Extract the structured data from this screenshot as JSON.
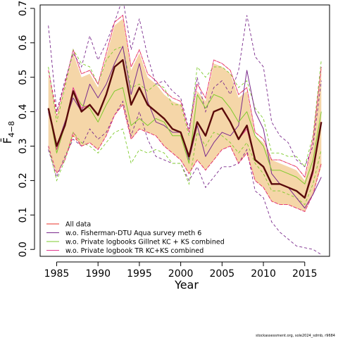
{
  "chart_data": {
    "type": "line",
    "xlabel": "Year",
    "ylabel": "F̄",
    "ylabel_sub": "4−8",
    "xlim": [
      1983,
      2018
    ],
    "ylim": [
      -0.02,
      0.71
    ],
    "x_ticks": [
      1985,
      1990,
      1995,
      2000,
      2005,
      2010,
      2015
    ],
    "x_tick_labels": [
      "1985",
      "1990",
      "1995",
      "2000",
      "2005",
      "2010",
      "2015"
    ],
    "y_ticks": [
      0.0,
      0.1,
      0.2,
      0.3,
      0.4,
      0.5,
      0.6,
      0.7
    ],
    "y_tick_labels": [
      "0.0",
      "0.1",
      "0.2",
      "0.3",
      "0.4",
      "0.5",
      "0.6",
      "0.7"
    ],
    "grid": false,
    "legend_position": "bottom-left",
    "footer": "stockassessment.org, sole2024_sdmb, r9684",
    "x": [
      1984,
      1985,
      1986,
      1987,
      1988,
      1989,
      1990,
      1991,
      1992,
      1993,
      1994,
      1995,
      1996,
      1997,
      1998,
      1999,
      2000,
      2001,
      2002,
      2003,
      2004,
      2005,
      2006,
      2007,
      2008,
      2009,
      2010,
      2011,
      2012,
      2013,
      2014,
      2015,
      2016,
      2017
    ],
    "band": {
      "color": "#f5d6a8",
      "lower": [
        0.29,
        0.22,
        0.26,
        0.33,
        0.3,
        0.31,
        0.29,
        0.33,
        0.39,
        0.42,
        0.32,
        0.35,
        0.34,
        0.33,
        0.3,
        0.28,
        0.26,
        0.22,
        0.26,
        0.23,
        0.26,
        0.29,
        0.3,
        0.25,
        0.28,
        0.2,
        0.18,
        0.14,
        0.13,
        0.13,
        0.12,
        0.11,
        0.16,
        0.24
      ],
      "upper": [
        0.51,
        0.39,
        0.47,
        0.57,
        0.5,
        0.51,
        0.47,
        0.56,
        0.65,
        0.67,
        0.52,
        0.57,
        0.5,
        0.48,
        0.45,
        0.43,
        0.42,
        0.33,
        0.46,
        0.43,
        0.54,
        0.53,
        0.51,
        0.44,
        0.46,
        0.33,
        0.31,
        0.26,
        0.25,
        0.24,
        0.23,
        0.2,
        0.31,
        0.52
      ]
    },
    "series": [
      {
        "name": "All data",
        "color": "#e8332a",
        "width": 1,
        "values": [
          0.41,
          0.3,
          0.36,
          0.46,
          0.4,
          0.42,
          0.39,
          0.45,
          0.53,
          0.55,
          0.42,
          0.47,
          0.42,
          0.4,
          0.38,
          0.35,
          0.34,
          0.27,
          0.37,
          0.33,
          0.4,
          0.41,
          0.37,
          0.32,
          0.36,
          0.26,
          0.24,
          0.19,
          0.19,
          0.18,
          0.17,
          0.15,
          0.23,
          0.37
        ]
      },
      {
        "name": "w.o. Fisherman-DTU Aqua survey meth 6",
        "color": "#7a2a8c",
        "width": 1,
        "values": [
          0.4,
          0.3,
          0.37,
          0.44,
          0.4,
          0.48,
          0.44,
          0.48,
          0.54,
          0.59,
          0.45,
          0.54,
          0.43,
          0.37,
          0.36,
          0.34,
          0.34,
          0.26,
          0.36,
          0.27,
          0.31,
          0.34,
          0.33,
          0.36,
          0.52,
          0.4,
          0.35,
          0.22,
          0.19,
          0.18,
          0.15,
          0.12,
          0.16,
          0.21
        ]
      },
      {
        "name": "w.o. Private logbooks Gillnet KC + KS combined",
        "color": "#7ecb2c",
        "width": 1,
        "values": [
          0.41,
          0.28,
          0.36,
          0.46,
          0.42,
          0.41,
          0.37,
          0.42,
          0.46,
          0.47,
          0.36,
          0.38,
          0.36,
          0.38,
          0.37,
          0.33,
          0.33,
          0.25,
          0.45,
          0.41,
          0.45,
          0.44,
          0.41,
          0.37,
          0.4,
          0.33,
          0.3,
          0.23,
          0.23,
          0.22,
          0.21,
          0.19,
          0.26,
          0.4
        ]
      },
      {
        "name": "w.o. Private logbook TR KC+KS combined",
        "color": "#e0388f",
        "width": 1,
        "values": [
          0.41,
          0.29,
          0.36,
          0.47,
          0.41,
          0.42,
          0.39,
          0.45,
          0.53,
          0.55,
          0.42,
          0.47,
          0.42,
          0.4,
          0.38,
          0.35,
          0.34,
          0.27,
          0.37,
          0.33,
          0.4,
          0.41,
          0.37,
          0.32,
          0.35,
          0.26,
          0.24,
          0.19,
          0.19,
          0.18,
          0.17,
          0.15,
          0.22,
          0.37
        ]
      },
      {
        "name": "",
        "color": "#5a0a0a",
        "width": 2.4,
        "values": [
          0.41,
          0.3,
          0.36,
          0.46,
          0.4,
          0.42,
          0.39,
          0.45,
          0.53,
          0.55,
          0.42,
          0.47,
          0.42,
          0.4,
          0.38,
          0.35,
          0.34,
          0.27,
          0.37,
          0.33,
          0.4,
          0.41,
          0.37,
          0.32,
          0.36,
          0.26,
          0.24,
          0.19,
          0.19,
          0.18,
          0.17,
          0.15,
          0.23,
          0.37
        ]
      }
    ],
    "dashed_bounds": [
      {
        "color": "#e8332a",
        "lower": [
          0.3,
          0.22,
          0.26,
          0.33,
          0.3,
          0.31,
          0.29,
          0.33,
          0.39,
          0.42,
          0.32,
          0.35,
          0.34,
          0.33,
          0.3,
          0.28,
          0.26,
          0.22,
          0.26,
          0.23,
          0.26,
          0.29,
          0.3,
          0.25,
          0.28,
          0.2,
          0.18,
          0.14,
          0.13,
          0.13,
          0.12,
          0.11,
          0.16,
          0.25
        ],
        "upper": [
          0.52,
          0.4,
          0.48,
          0.58,
          0.51,
          0.52,
          0.48,
          0.57,
          0.66,
          0.68,
          0.53,
          0.58,
          0.51,
          0.49,
          0.46,
          0.44,
          0.43,
          0.34,
          0.48,
          0.44,
          0.55,
          0.54,
          0.52,
          0.45,
          0.47,
          0.34,
          0.32,
          0.26,
          0.26,
          0.25,
          0.24,
          0.21,
          0.32,
          0.53
        ]
      },
      {
        "color": "#7a2a8c",
        "lower": [
          0.29,
          0.21,
          0.27,
          0.32,
          0.3,
          0.35,
          0.32,
          0.34,
          0.39,
          0.43,
          0.33,
          0.4,
          0.32,
          0.27,
          0.26,
          0.25,
          0.25,
          0.2,
          0.24,
          0.18,
          0.21,
          0.24,
          0.24,
          0.25,
          0.29,
          0.17,
          0.15,
          0.08,
          0.05,
          0.03,
          0.01,
          0.005,
          0.0,
          -0.015
        ],
        "upper": [
          0.65,
          0.4,
          0.49,
          0.57,
          0.53,
          0.62,
          0.55,
          0.6,
          0.66,
          0.73,
          0.58,
          0.67,
          0.56,
          0.48,
          0.49,
          0.46,
          0.44,
          0.35,
          0.5,
          0.4,
          0.47,
          0.49,
          0.45,
          0.52,
          0.68,
          0.56,
          0.53,
          0.37,
          0.33,
          0.31,
          0.26,
          0.24,
          0.3,
          0.49
        ]
      },
      {
        "color": "#7ecb2c",
        "lower": [
          0.3,
          0.2,
          0.26,
          0.34,
          0.31,
          0.3,
          0.28,
          0.31,
          0.34,
          0.35,
          0.25,
          0.29,
          0.28,
          0.29,
          0.28,
          0.25,
          0.25,
          0.19,
          0.34,
          0.3,
          0.34,
          0.33,
          0.31,
          0.28,
          0.31,
          0.25,
          0.22,
          0.17,
          0.17,
          0.16,
          0.15,
          0.13,
          0.19,
          0.29
        ]
      },
      {
        "color": "#7ecb2c",
        "upper": [
          0.53,
          0.37,
          0.47,
          0.58,
          0.54,
          0.53,
          0.48,
          0.55,
          0.58,
          0.59,
          0.47,
          0.48,
          0.46,
          0.48,
          0.47,
          0.42,
          0.42,
          0.33,
          0.53,
          0.5,
          0.53,
          0.53,
          0.51,
          0.47,
          0.49,
          0.41,
          0.38,
          0.28,
          0.28,
          0.27,
          0.27,
          0.24,
          0.33,
          0.55
        ]
      },
      {
        "color": "#e0388f",
        "lower": [
          0.3,
          0.22,
          0.26,
          0.34,
          0.3,
          0.31,
          0.29,
          0.33,
          0.39,
          0.42,
          0.32,
          0.35,
          0.34,
          0.33,
          0.3,
          0.28,
          0.26,
          0.22,
          0.26,
          0.23,
          0.26,
          0.29,
          0.3,
          0.25,
          0.28,
          0.2,
          0.18,
          0.14,
          0.13,
          0.13,
          0.12,
          0.11,
          0.16,
          0.25
        ],
        "upper": [
          0.52,
          0.39,
          0.48,
          0.58,
          0.51,
          0.52,
          0.48,
          0.57,
          0.66,
          0.68,
          0.53,
          0.58,
          0.51,
          0.49,
          0.46,
          0.44,
          0.43,
          0.34,
          0.48,
          0.44,
          0.55,
          0.54,
          0.52,
          0.45,
          0.47,
          0.34,
          0.32,
          0.26,
          0.26,
          0.25,
          0.24,
          0.21,
          0.32,
          0.53
        ]
      }
    ],
    "legend": [
      {
        "label": "All data",
        "color": "#e8332a"
      },
      {
        "label": "w.o. Fisherman-DTU Aqua survey meth 6",
        "color": "#7a2a8c"
      },
      {
        "label": "w.o. Private logbooks Gillnet KC + KS combined",
        "color": "#7ecb2c"
      },
      {
        "label": "w.o. Private logbook TR KC+KS combined",
        "color": "#e0388f"
      }
    ]
  }
}
